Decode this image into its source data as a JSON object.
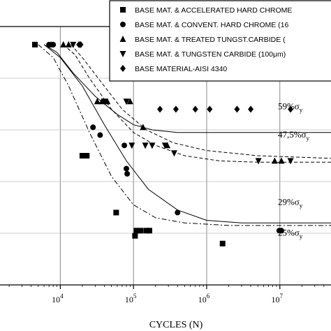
{
  "chart_data": {
    "type": "scatter",
    "title": "",
    "xlabel": "CYCLES (N)",
    "ylabel": "",
    "xscale": "log",
    "xlim": [
      1500,
      50000000
    ],
    "ylim": [
      0,
      100
    ],
    "grid": true,
    "legend_position": "top-right",
    "x_tick_values": [
      10000,
      100000,
      1000000,
      10000000
    ],
    "x_tick_labels": [
      {
        "base": "10",
        "exp": "4"
      },
      {
        "base": "10",
        "exp": "5"
      },
      {
        "base": "10",
        "exp": "6"
      },
      {
        "base": "10",
        "exp": "7"
      }
    ],
    "series": [
      {
        "name": "BASE MAT. & ACCELERATED HARD CHROME",
        "marker": "square",
        "points": [
          [
            4500,
            93
          ],
          [
            20000,
            50
          ],
          [
            23000,
            50
          ],
          [
            58000,
            28
          ],
          [
            105000,
            19
          ],
          [
            110000,
            21
          ],
          [
            125000,
            21
          ],
          [
            150000,
            21
          ],
          [
            165000,
            21
          ],
          [
            1650000,
            16
          ]
        ]
      },
      {
        "name": "BASE MAT. & CONVENT. HARD CHROME (16",
        "marker": "circle",
        "points": [
          [
            7000,
            93
          ],
          [
            8000,
            93
          ],
          [
            28000,
            61
          ],
          [
            35000,
            58
          ],
          [
            75000,
            54
          ],
          [
            80000,
            45
          ],
          [
            82000,
            43
          ],
          [
            400000,
            28
          ],
          [
            9800000,
            21
          ],
          [
            10500000,
            21
          ]
        ]
      },
      {
        "name": "BASE MAT. & TREATED TUNGST.CARBIDE (",
        "marker": "triangle-up",
        "points": [
          [
            7500,
            93
          ],
          [
            11000,
            93
          ],
          [
            13000,
            93
          ],
          [
            32000,
            71
          ],
          [
            37000,
            71
          ],
          [
            44000,
            71
          ],
          [
            90000,
            71
          ],
          [
            135000,
            61
          ],
          [
            290000,
            54
          ],
          [
            8500000,
            48
          ],
          [
            10500000,
            48
          ]
        ]
      },
      {
        "name": "BASE MAT. & TUNGSTEN CARBIDE (100μm)",
        "marker": "triangle-down",
        "points": [
          [
            15000,
            93
          ],
          [
            40000,
            71
          ],
          [
            80000,
            71
          ],
          [
            95000,
            54
          ],
          [
            145000,
            54
          ],
          [
            180000,
            54
          ],
          [
            270000,
            54
          ],
          [
            360000,
            51
          ],
          [
            5100000,
            48
          ],
          [
            14000000,
            48
          ]
        ]
      },
      {
        "name": "BASE MATERIAL-AISI 4340",
        "marker": "diamond",
        "points": [
          [
            18000,
            93
          ],
          [
            19000,
            93
          ],
          [
            105000,
            93
          ],
          [
            115000,
            93
          ],
          [
            230000,
            68
          ],
          [
            380000,
            68
          ],
          [
            700000,
            68
          ],
          [
            1100000,
            68
          ],
          [
            2600000,
            68
          ],
          [
            4000000,
            68
          ],
          [
            14000000,
            68
          ]
        ]
      }
    ],
    "curves": [
      {
        "style": "solid",
        "points": [
          [
            6000,
            93
          ],
          [
            9000,
            90
          ],
          [
            15000,
            82
          ],
          [
            30000,
            73
          ],
          [
            60000,
            66
          ],
          [
            100000,
            62
          ],
          [
            180000,
            60
          ],
          [
            400000,
            59
          ],
          [
            1000000,
            59
          ],
          [
            50000000,
            59
          ]
        ]
      },
      {
        "style": "dashed",
        "points": [
          [
            11000,
            93
          ],
          [
            16000,
            89
          ],
          [
            25000,
            80
          ],
          [
            50000,
            68
          ],
          [
            100000,
            59
          ],
          [
            200000,
            54
          ],
          [
            500000,
            50
          ],
          [
            1500000,
            48
          ],
          [
            5000000,
            47.5
          ],
          [
            50000000,
            47.5
          ]
        ]
      },
      {
        "style": "dashed",
        "points": [
          [
            14000,
            93
          ],
          [
            20000,
            88
          ],
          [
            35000,
            79
          ],
          [
            70000,
            68
          ],
          [
            150000,
            60
          ],
          [
            350000,
            55
          ],
          [
            1000000,
            52
          ],
          [
            5000000,
            50
          ],
          [
            50000000,
            49
          ]
        ]
      },
      {
        "style": "solid",
        "points": [
          [
            6000,
            93
          ],
          [
            10000,
            88
          ],
          [
            20000,
            77
          ],
          [
            40000,
            62
          ],
          [
            80000,
            48
          ],
          [
            160000,
            37
          ],
          [
            400000,
            29
          ],
          [
            1000000,
            25
          ],
          [
            3000000,
            24
          ],
          [
            50000000,
            24
          ]
        ]
      },
      {
        "style": "dashdot",
        "points": [
          [
            5000,
            93
          ],
          [
            8000,
            88
          ],
          [
            13000,
            77
          ],
          [
            25000,
            59
          ],
          [
            50000,
            42
          ],
          [
            100000,
            31
          ],
          [
            200000,
            26
          ],
          [
            500000,
            24
          ],
          [
            2000000,
            23
          ],
          [
            50000000,
            23
          ]
        ]
      }
    ],
    "annotations": [
      {
        "base": "59%σ",
        "sub": "y",
        "x": 3000000,
        "y": 68
      },
      {
        "base": "47,5%σ",
        "sub": "y",
        "x": 3000000,
        "y": 57
      },
      {
        "base": "29%σ",
        "sub": "y",
        "x": 3000000,
        "y": 31
      },
      {
        "base": "25%σ",
        "sub": "y",
        "x": 3000000,
        "y": 19
      }
    ]
  }
}
